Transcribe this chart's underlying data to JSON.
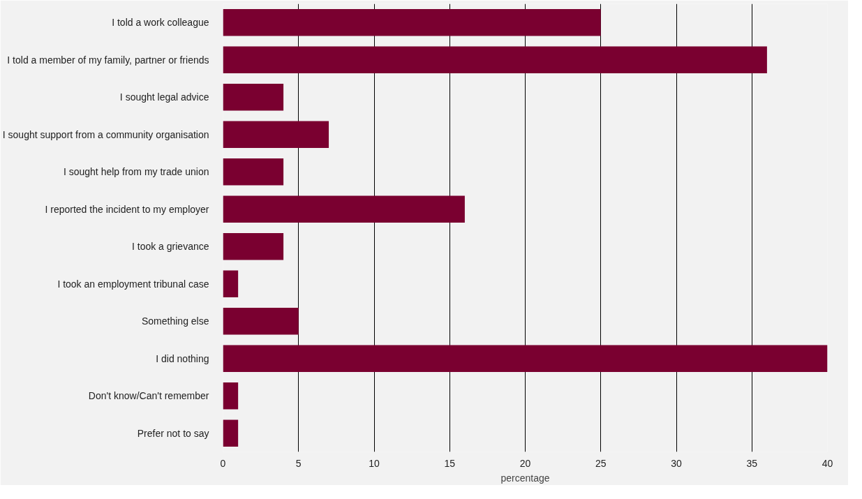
{
  "chart_data": {
    "type": "bar",
    "orientation": "horizontal",
    "xlabel": "percentage",
    "categories": [
      "I told a work colleague",
      "I told a member of my family, partner or friends",
      "I sought legal advice",
      "I sought support from a community organisation",
      "I sought help from my trade union",
      "I reported the incident to my employer",
      "I took a grievance",
      "I took an employment tribunal case",
      "Something else",
      "I did nothing",
      "Don't know/Can't remember",
      "Prefer not to say"
    ],
    "values": [
      25,
      36,
      4,
      7,
      4,
      16,
      4,
      1,
      5,
      40,
      1,
      1
    ],
    "color": "#7a0030",
    "xlim": [
      0,
      40
    ],
    "xticks": [
      0,
      5,
      10,
      15,
      20,
      25,
      30,
      35,
      40
    ],
    "grid": "x"
  }
}
